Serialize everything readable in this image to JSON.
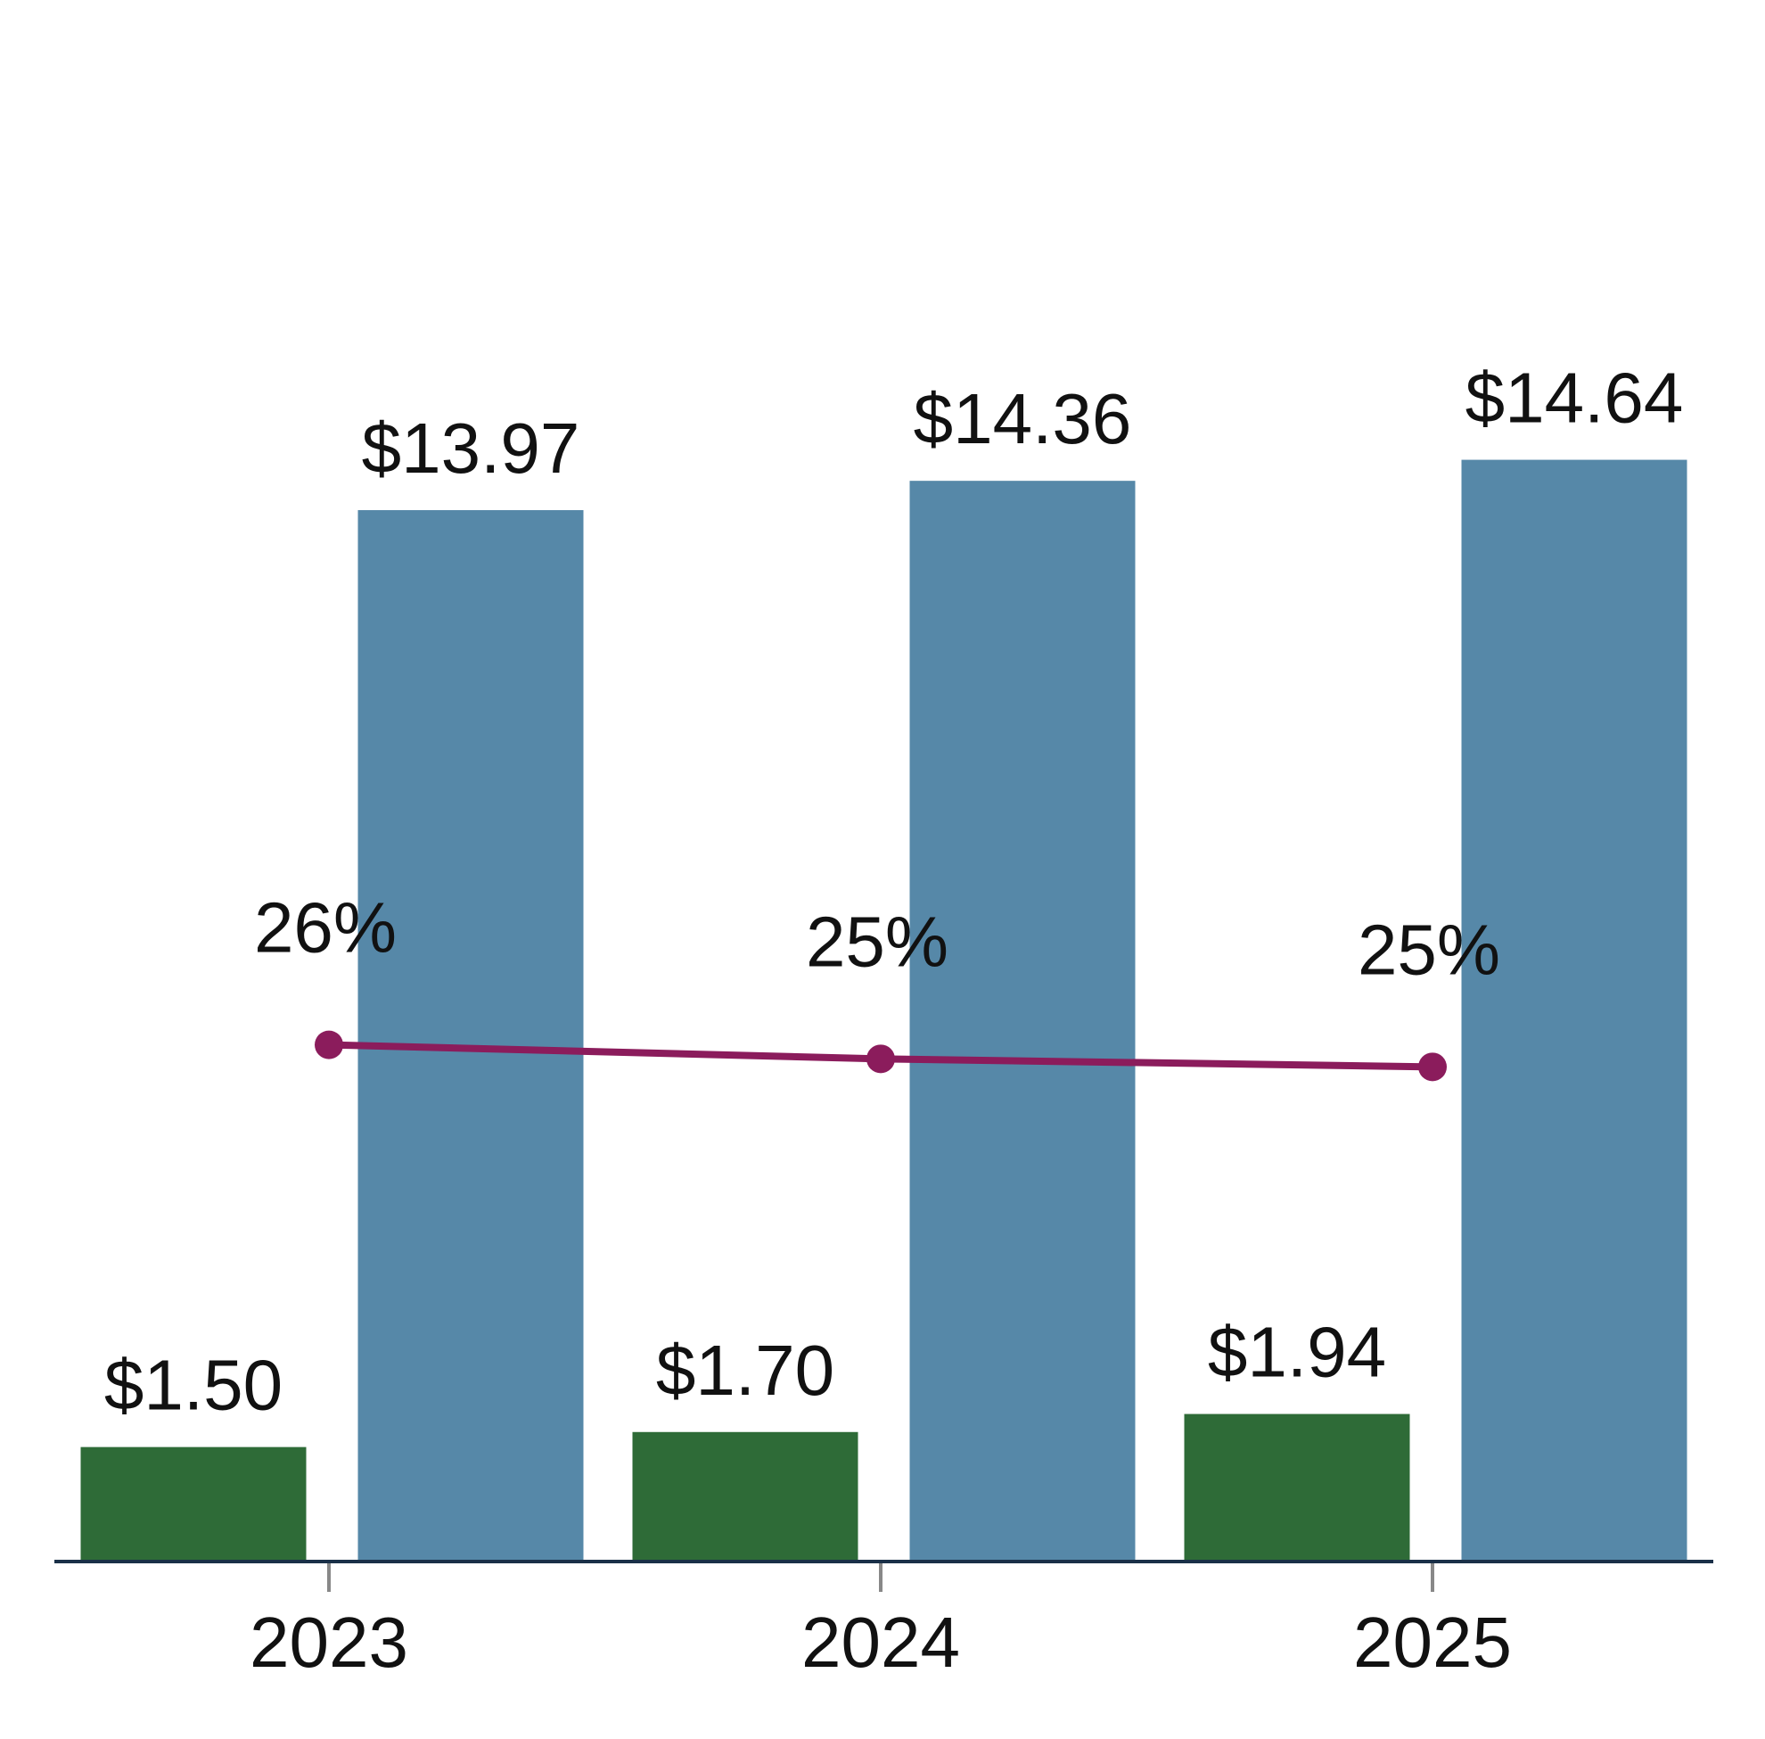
{
  "chart_data": {
    "type": "bar",
    "categories": [
      "2023",
      "2024",
      "2025"
    ],
    "series": [
      {
        "type": "bar",
        "color": "#2e6b37",
        "values": [
          1.5,
          1.7,
          1.94
        ],
        "value_labels": [
          "$1.50",
          "$1.70",
          "$1.94"
        ]
      },
      {
        "type": "bar",
        "color": "#5688a8",
        "values": [
          13.97,
          14.36,
          14.64
        ],
        "value_labels": [
          "$13.97",
          "$14.36",
          "$14.64"
        ]
      },
      {
        "type": "line",
        "axis": "y2",
        "color": "#8b1c5c",
        "values": [
          25.7,
          25.0,
          24.6
        ],
        "value_labels": [
          "26%",
          "25%",
          "25%"
        ]
      }
    ],
    "ylim": [
      0,
      20
    ],
    "y2lim": [
      0,
      75
    ]
  }
}
